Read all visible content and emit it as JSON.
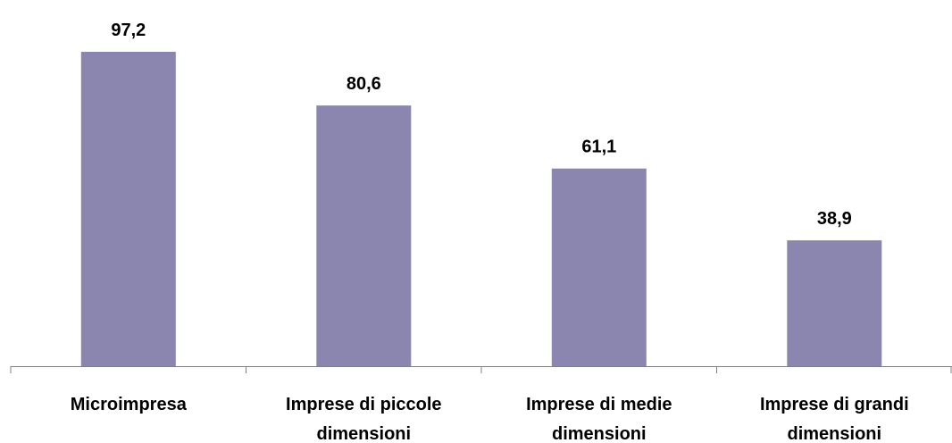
{
  "chart_data": {
    "type": "bar",
    "categories": [
      [
        "Microimpresa"
      ],
      [
        "Imprese di piccole",
        "dimensioni"
      ],
      [
        "Imprese di medie",
        "dimensioni"
      ],
      [
        "Imprese di grandi",
        "dimensioni"
      ]
    ],
    "values": [
      97.2,
      80.6,
      61.1,
      38.9
    ],
    "value_labels": [
      "97,2",
      "80,6",
      "61,1",
      "38,9"
    ],
    "ylim": [
      0,
      100
    ],
    "grid": false,
    "bar_color": "#8b86b0",
    "axis_color": "#808080"
  }
}
